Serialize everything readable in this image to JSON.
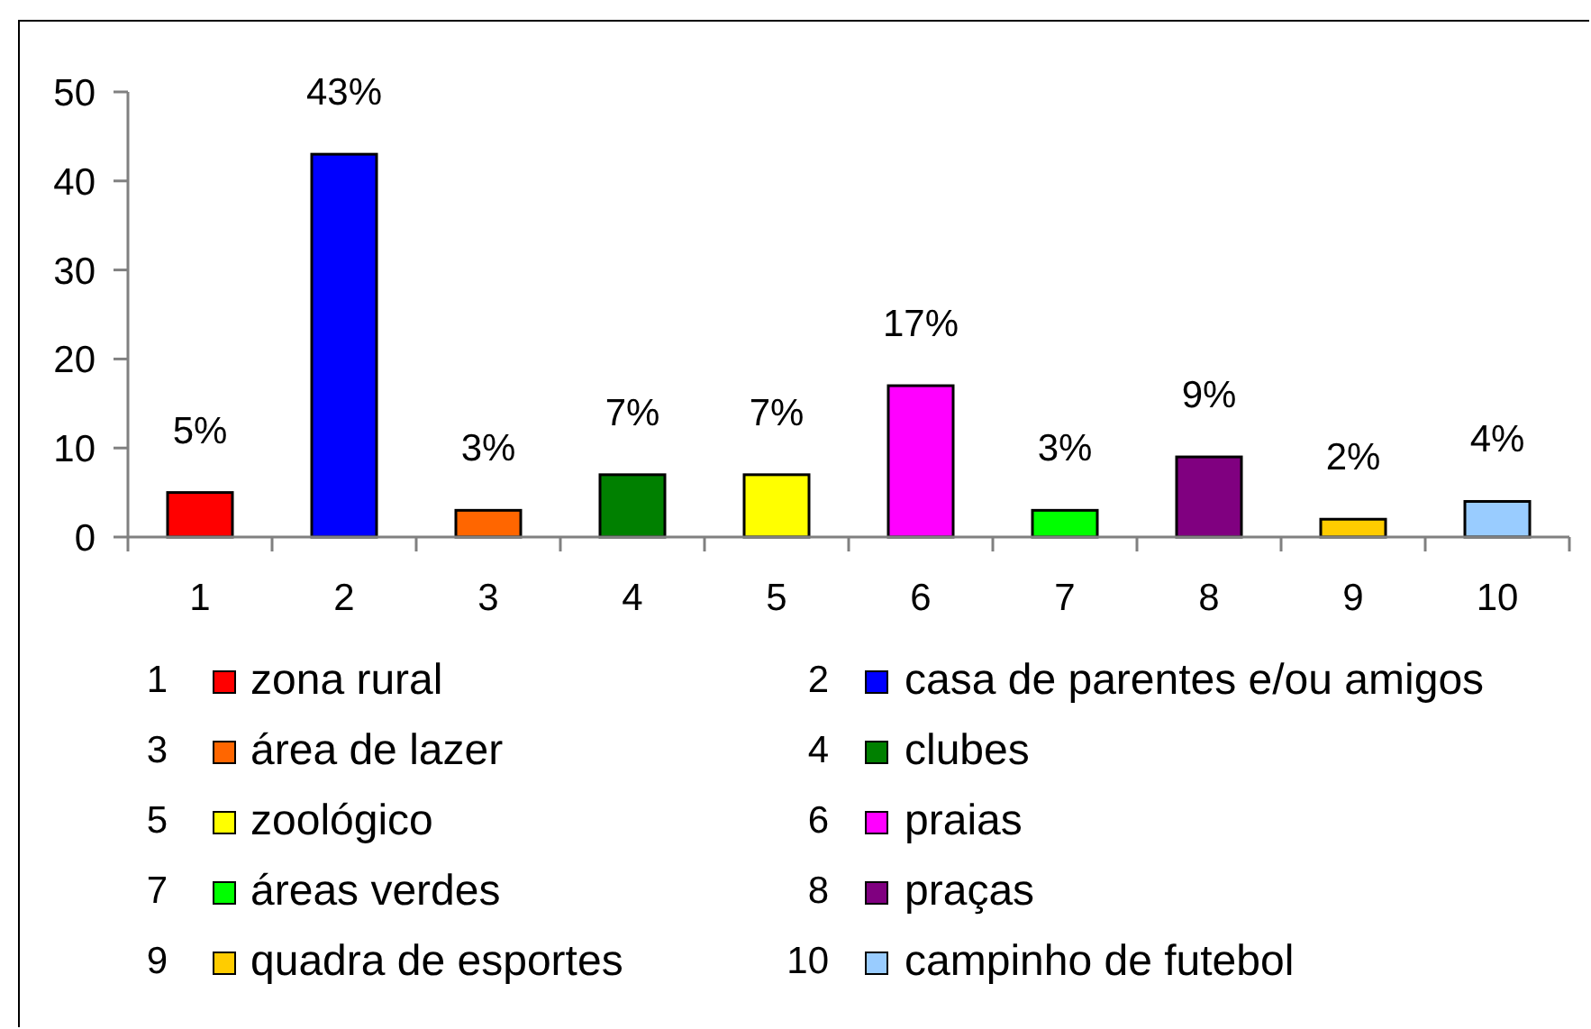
{
  "chart_data": {
    "type": "bar",
    "categories": [
      "1",
      "2",
      "3",
      "4",
      "5",
      "6",
      "7",
      "8",
      "9",
      "10"
    ],
    "stacked": true,
    "series": [
      {
        "name": "zona rural",
        "color": "#ff0000",
        "values": [
          5,
          null,
          null,
          null,
          null,
          null,
          null,
          null,
          null,
          null
        ],
        "value_labels": [
          "5%",
          null,
          null,
          null,
          null,
          null,
          null,
          null,
          null,
          null
        ]
      },
      {
        "name": "casa de parentes e/ou amigos",
        "color": "#0000ff",
        "values": [
          null,
          43,
          null,
          null,
          null,
          null,
          null,
          null,
          null,
          null
        ],
        "value_labels": [
          null,
          "43%",
          null,
          null,
          null,
          null,
          null,
          null,
          null,
          null
        ]
      },
      {
        "name": "área de lazer",
        "color": "#ff6600",
        "values": [
          null,
          null,
          3,
          null,
          null,
          null,
          null,
          null,
          null,
          null
        ],
        "value_labels": [
          null,
          null,
          "3%",
          null,
          null,
          null,
          null,
          null,
          null,
          null
        ]
      },
      {
        "name": "clubes",
        "color": "#008000",
        "values": [
          null,
          null,
          null,
          7,
          null,
          null,
          null,
          null,
          null,
          null
        ],
        "value_labels": [
          null,
          null,
          null,
          "7%",
          null,
          null,
          null,
          null,
          null,
          null
        ]
      },
      {
        "name": "zoológico",
        "color": "#ffff00",
        "values": [
          null,
          null,
          null,
          null,
          7,
          null,
          null,
          null,
          null,
          null
        ],
        "value_labels": [
          null,
          null,
          null,
          null,
          "7%",
          null,
          null,
          null,
          null,
          null
        ]
      },
      {
        "name": "praias",
        "color": "#ff00ff",
        "values": [
          null,
          null,
          null,
          null,
          null,
          17,
          null,
          null,
          null,
          null
        ],
        "value_labels": [
          null,
          null,
          null,
          null,
          null,
          "17%",
          null,
          null,
          null,
          null
        ]
      },
      {
        "name": "áreas verdes",
        "color": "#00ff00",
        "values": [
          null,
          null,
          null,
          null,
          null,
          null,
          3,
          null,
          null,
          null
        ],
        "value_labels": [
          null,
          null,
          null,
          null,
          null,
          null,
          "3%",
          null,
          null,
          null
        ]
      },
      {
        "name": "praças",
        "color": "#800080",
        "values": [
          null,
          null,
          null,
          null,
          null,
          null,
          null,
          9,
          null,
          null
        ],
        "value_labels": [
          null,
          null,
          null,
          null,
          null,
          null,
          null,
          "9%",
          null,
          null
        ]
      },
      {
        "name": "quadra de esportes",
        "color": "#ffcc00",
        "values": [
          null,
          null,
          null,
          null,
          null,
          null,
          null,
          null,
          2,
          null
        ],
        "value_labels": [
          null,
          null,
          null,
          null,
          null,
          null,
          null,
          null,
          "2%",
          null
        ]
      },
      {
        "name": "campinho de futebol",
        "color": "#99ccff",
        "values": [
          null,
          null,
          null,
          null,
          null,
          null,
          null,
          null,
          null,
          4
        ],
        "value_labels": [
          null,
          null,
          null,
          null,
          null,
          null,
          null,
          null,
          null,
          "4%"
        ]
      }
    ],
    "ylim": [
      0,
      50
    ],
    "yticks": [
      0,
      10,
      20,
      30,
      40,
      50
    ],
    "legend": "bottom"
  }
}
